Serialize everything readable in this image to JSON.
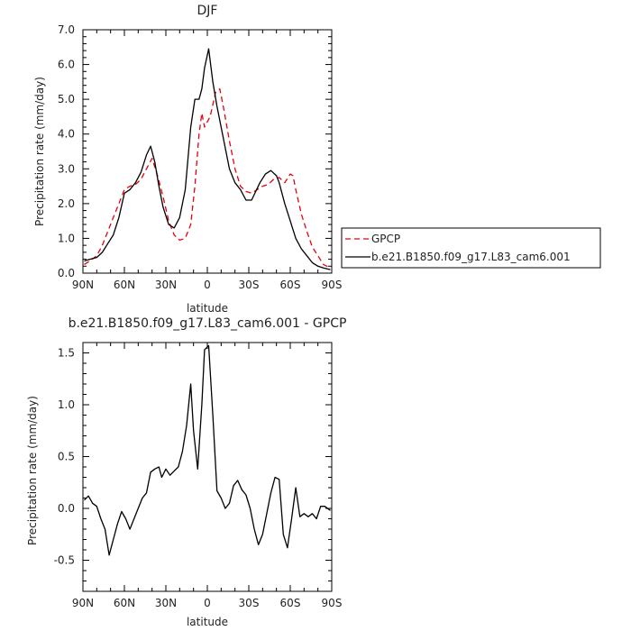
{
  "chart_data": [
    {
      "type": "line",
      "title": "DJF",
      "xlabel": "latitude",
      "ylabel": "Precipitation rate (mm/day)",
      "xlim": [
        90,
        -90
      ],
      "ylim": [
        0,
        7
      ],
      "x_ticks": [
        90,
        60,
        30,
        0,
        -30,
        -60,
        -90
      ],
      "x_tick_labels": [
        "90N",
        "60N",
        "30N",
        "0",
        "30S",
        "60S",
        "90S"
      ],
      "y_ticks": [
        0,
        1,
        2,
        3,
        4,
        5,
        6,
        7
      ],
      "y_tick_labels": [
        "0.0",
        "1.0",
        "2.0",
        "3.0",
        "4.0",
        "5.0",
        "6.0",
        "7.0"
      ],
      "legend_position": "right",
      "series": [
        {
          "name": "GPCP",
          "color": "#e8000b",
          "dash": "dashed",
          "x": [
            89,
            85,
            80,
            76,
            72,
            68,
            64,
            60,
            56,
            52,
            48,
            44,
            40,
            36,
            32,
            28,
            24,
            20,
            16,
            12,
            9,
            6,
            4,
            2,
            -2,
            -6,
            -9,
            -12,
            -16,
            -20,
            -24,
            -28,
            -32,
            -36,
            -40,
            -44,
            -48,
            -52,
            -56,
            -60,
            -62,
            -64,
            -68,
            -72,
            -76,
            -80,
            -84,
            -89
          ],
          "y": [
            0.25,
            0.35,
            0.5,
            0.8,
            1.2,
            1.6,
            2.0,
            2.4,
            2.5,
            2.55,
            2.7,
            3.0,
            3.3,
            2.8,
            2.2,
            1.5,
            1.1,
            0.95,
            1.0,
            1.4,
            2.5,
            4.0,
            4.6,
            4.2,
            4.5,
            5.2,
            5.3,
            4.7,
            3.8,
            3.0,
            2.5,
            2.35,
            2.3,
            2.4,
            2.5,
            2.55,
            2.7,
            2.75,
            2.6,
            2.85,
            2.8,
            2.4,
            1.7,
            1.2,
            0.75,
            0.5,
            0.25,
            0.15
          ]
        },
        {
          "name": "b.e21.B1850.f09_g17.L83_cam6.001",
          "color": "#000000",
          "dash": "solid",
          "x": [
            89,
            85,
            80,
            76,
            72,
            68,
            64,
            60,
            56,
            52,
            48,
            44,
            41,
            38,
            35,
            32,
            28,
            24,
            20,
            16,
            12,
            9,
            6,
            4,
            2,
            -1,
            -4,
            -7,
            -10,
            -13,
            -16,
            -20,
            -24,
            -28,
            -32,
            -35,
            -38,
            -42,
            -46,
            -50,
            -52,
            -56,
            -60,
            -64,
            -68,
            -72,
            -76,
            -80,
            -84,
            -89
          ],
          "y": [
            0.35,
            0.4,
            0.45,
            0.6,
            0.85,
            1.1,
            1.6,
            2.3,
            2.4,
            2.6,
            2.9,
            3.4,
            3.65,
            3.2,
            2.5,
            1.9,
            1.4,
            1.3,
            1.6,
            2.4,
            4.2,
            5.0,
            5.0,
            5.3,
            5.9,
            6.45,
            5.5,
            4.8,
            4.2,
            3.6,
            3.0,
            2.6,
            2.4,
            2.1,
            2.1,
            2.35,
            2.6,
            2.85,
            2.95,
            2.8,
            2.6,
            2.0,
            1.5,
            1.0,
            0.7,
            0.5,
            0.3,
            0.2,
            0.15,
            0.1
          ]
        }
      ]
    },
    {
      "type": "line",
      "title": "b.e21.B1850.f09_g17.L83_cam6.001 - GPCP",
      "xlabel": "latitude",
      "ylabel": "Precipitation rate (mm/day)",
      "xlim": [
        90,
        -90
      ],
      "ylim": [
        -0.8,
        1.6
      ],
      "x_ticks": [
        90,
        60,
        30,
        0,
        -30,
        -60,
        -90
      ],
      "x_tick_labels": [
        "90N",
        "60N",
        "30N",
        "0",
        "30S",
        "60S",
        "90S"
      ],
      "y_ticks": [
        -0.5,
        0,
        0.5,
        1.0,
        1.5
      ],
      "y_tick_labels": [
        "-0.5",
        "0.0",
        "0.5",
        "1.0",
        "1.5"
      ],
      "series": [
        {
          "color": "#000000",
          "dash": "solid",
          "x": [
            89,
            86,
            83,
            80,
            77,
            74,
            71,
            68,
            65,
            62,
            59,
            56,
            53,
            50,
            47,
            44,
            41,
            38,
            35,
            33,
            30,
            27,
            24,
            21,
            18,
            15,
            12,
            10,
            7,
            4,
            2,
            -1,
            -4,
            -7,
            -10,
            -13,
            -16,
            -19,
            -22,
            -25,
            -28,
            -31,
            -34,
            -37,
            -40,
            -43,
            -46,
            -49,
            -52,
            -55,
            -58,
            -61,
            -64,
            -67,
            -70,
            -73,
            -76,
            -79,
            -82,
            -85,
            -89
          ],
          "y": [
            0.08,
            0.12,
            0.05,
            0.02,
            -0.1,
            -0.2,
            -0.45,
            -0.3,
            -0.15,
            -0.03,
            -0.1,
            -0.2,
            -0.1,
            0.0,
            0.1,
            0.15,
            0.35,
            0.38,
            0.4,
            0.3,
            0.38,
            0.32,
            0.36,
            0.4,
            0.55,
            0.8,
            1.2,
            0.75,
            0.38,
            1.0,
            1.53,
            1.57,
            0.9,
            0.17,
            0.1,
            0.0,
            0.05,
            0.22,
            0.27,
            0.18,
            0.13,
            0.0,
            -0.2,
            -0.35,
            -0.25,
            -0.05,
            0.15,
            0.3,
            0.28,
            -0.25,
            -0.38,
            -0.1,
            0.2,
            -0.08,
            -0.05,
            -0.08,
            -0.05,
            -0.1,
            0.02,
            0.02,
            -0.02
          ]
        }
      ]
    }
  ]
}
